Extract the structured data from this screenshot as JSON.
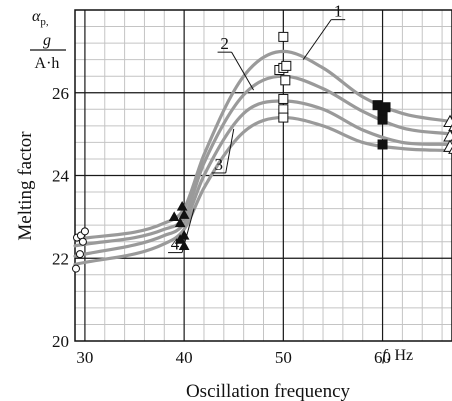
{
  "chart_data": {
    "type": "line",
    "xlabel": "Oscillation frequency",
    "ylabel": "Melting factor",
    "x_unit_symbol": "f",
    "x_unit": ", Hz",
    "y_unit_symbol": "α",
    "y_unit_sub": "p,",
    "y_unit_num": "g",
    "y_unit_den": "A·h",
    "xlim": [
      29,
      67
    ],
    "ylim": [
      20,
      28
    ],
    "x_ticks": [
      30,
      40,
      50,
      60
    ],
    "x_tick_labels": [
      "30",
      "40",
      "50",
      "60"
    ],
    "y_ticks": [
      20,
      22,
      24,
      26
    ],
    "y_tick_labels": [
      "20",
      "22",
      "24",
      "26"
    ],
    "major_grid": true,
    "minor_grid": true,
    "minor_x_step": 2,
    "minor_y_step": 0.4,
    "colors": {
      "curve": "#9a9a9a",
      "grid_major": "#1a1a1a",
      "grid_minor": "#c4c4c4",
      "axis": "#111111"
    },
    "series": [
      {
        "name": "1",
        "x": [
          29,
          38,
          40,
          42,
          46,
          50,
          54,
          58,
          62,
          67
        ],
        "y": [
          22.45,
          22.85,
          23.2,
          24.5,
          26.4,
          27.0,
          26.6,
          25.9,
          25.5,
          25.3
        ]
      },
      {
        "name": "2",
        "x": [
          29,
          38,
          40,
          42,
          46,
          50,
          54,
          58,
          62,
          67
        ],
        "y": [
          22.3,
          22.7,
          23.0,
          24.3,
          25.95,
          26.4,
          26.1,
          25.55,
          25.15,
          25.0
        ]
      },
      {
        "name": "3",
        "x": [
          29,
          38,
          40,
          42,
          46,
          50,
          54,
          58,
          62,
          67
        ],
        "y": [
          22.05,
          22.55,
          22.85,
          24.0,
          25.5,
          25.8,
          25.6,
          25.1,
          24.8,
          24.75
        ]
      },
      {
        "name": "4",
        "x": [
          29,
          38,
          40,
          42,
          46,
          50,
          54,
          58,
          62,
          67
        ],
        "y": [
          21.85,
          22.35,
          22.7,
          23.7,
          25.05,
          25.4,
          25.2,
          24.8,
          24.65,
          24.6
        ]
      }
    ],
    "markers": [
      {
        "shape": "circle-open",
        "points": [
          [
            29.2,
            22.5
          ],
          [
            29.6,
            22.55
          ],
          [
            30.0,
            22.65
          ],
          [
            29.8,
            22.4
          ],
          [
            29.5,
            22.1
          ],
          [
            29.1,
            21.75
          ]
        ]
      },
      {
        "shape": "triangle-filled",
        "points": [
          [
            39.0,
            23.0
          ],
          [
            39.8,
            23.25
          ],
          [
            40.0,
            23.05
          ],
          [
            39.6,
            22.85
          ],
          [
            40.0,
            22.55
          ],
          [
            39.6,
            22.45
          ],
          [
            40.0,
            22.3
          ]
        ]
      },
      {
        "shape": "square-open",
        "points": [
          [
            50.0,
            27.35
          ],
          [
            49.6,
            26.55
          ],
          [
            50.0,
            26.6
          ],
          [
            50.3,
            26.65
          ],
          [
            50.2,
            26.3
          ],
          [
            50.0,
            25.85
          ],
          [
            50.0,
            25.6
          ],
          [
            50.0,
            25.4
          ]
        ]
      },
      {
        "shape": "square-filled",
        "points": [
          [
            59.5,
            25.7
          ],
          [
            60.0,
            25.6
          ],
          [
            60.3,
            25.65
          ],
          [
            60.0,
            25.45
          ],
          [
            60.0,
            25.35
          ],
          [
            60.0,
            24.75
          ]
        ]
      },
      {
        "shape": "triangle-open",
        "points": [
          [
            66.8,
            25.3
          ],
          [
            67.3,
            25.2
          ],
          [
            66.8,
            24.95
          ],
          [
            67.3,
            24.85
          ],
          [
            66.8,
            24.7
          ],
          [
            67.3,
            24.65
          ]
        ]
      }
    ],
    "curve_labels": [
      {
        "text": "1",
        "series": "1",
        "leader_x": 52
      },
      {
        "text": "2",
        "series": "2",
        "leader_x": 47
      },
      {
        "text": "3",
        "series": "3",
        "leader_x": 45
      },
      {
        "text": "4",
        "series": "4",
        "leader_x": 41
      }
    ]
  }
}
